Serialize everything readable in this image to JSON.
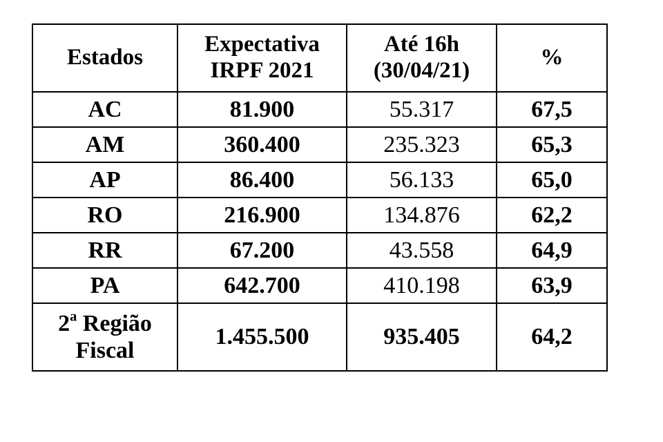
{
  "table": {
    "headers": {
      "estados": "Estados",
      "expectativa_line1": "Expectativa",
      "expectativa_line2": "IRPF 2021",
      "ate_line1": "Até 16h",
      "ate_line2": "(30/04/21)",
      "percent": "%"
    },
    "rows": [
      {
        "estado": "AC",
        "expectativa": "81.900",
        "ate": "55.317",
        "percent": "67,5"
      },
      {
        "estado": "AM",
        "expectativa": "360.400",
        "ate": "235.323",
        "percent": "65,3"
      },
      {
        "estado": "AP",
        "expectativa": "86.400",
        "ate": "56.133",
        "percent": "65,0"
      },
      {
        "estado": "RO",
        "expectativa": "216.900",
        "ate": "134.876",
        "percent": "62,2"
      },
      {
        "estado": "RR",
        "expectativa": "67.200",
        "ate": "43.558",
        "percent": "64,9"
      },
      {
        "estado": "PA",
        "expectativa": "642.700",
        "ate": "410.198",
        "percent": "63,9"
      }
    ],
    "total": {
      "label_number": "2",
      "label_ordinal": "a",
      "label_line1_rest": " Região",
      "label_line2": "Fiscal",
      "expectativa": "1.455.500",
      "ate": "935.405",
      "percent": "64,2"
    }
  }
}
